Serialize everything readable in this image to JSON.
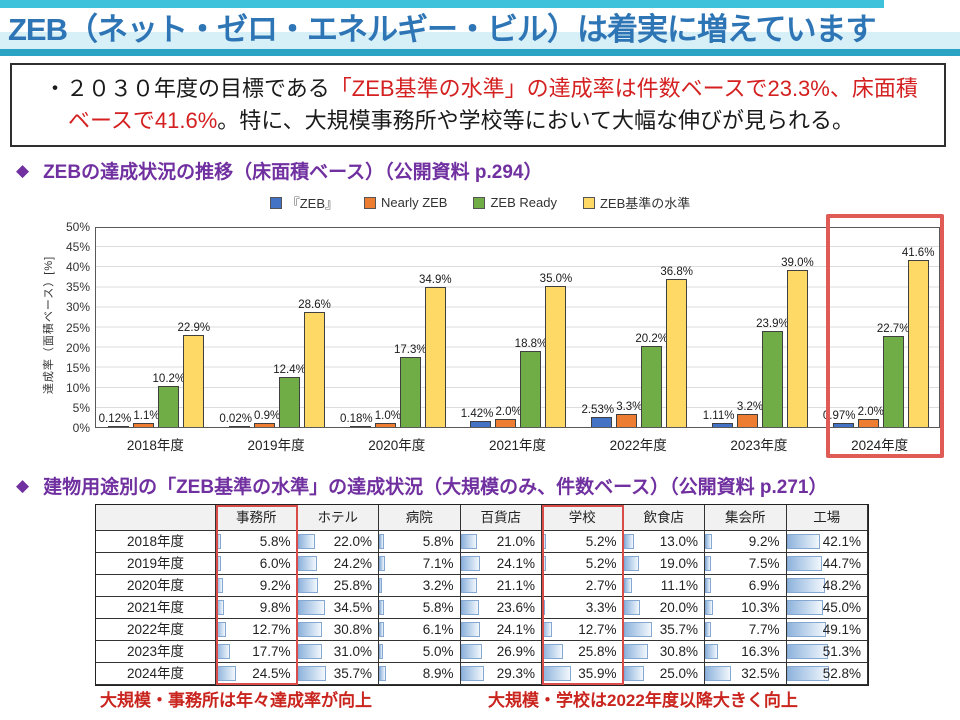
{
  "header": {
    "title": "ZEB（ネット・ゼロ・エネルギー・ビル）は着実に増えています"
  },
  "summary": {
    "segments": [
      {
        "text": "・２０３０年度の目標である",
        "color": "dark"
      },
      {
        "text": "「ZEB基準の水準」の達成率は件数ベースで23.3%、床面積ベースで41.6%",
        "color": "red"
      },
      {
        "text": "。特に、大規模事務所や学校等において大幅な伸びが見られる。",
        "color": "dark"
      }
    ]
  },
  "section1": {
    "marker": "◆",
    "title": "ZEBの達成状況の推移（床面積ベース）（公開資料 p.294）"
  },
  "chart_data": {
    "type": "bar",
    "title": "",
    "categories": [
      "2018年度",
      "2019年度",
      "2020年度",
      "2021年度",
      "2022年度",
      "2023年度",
      "2024年度"
    ],
    "series": [
      {
        "name": "『ZEB』",
        "color": "#4472C4",
        "values": [
          0.12,
          0.02,
          0.18,
          1.42,
          2.53,
          1.11,
          0.97
        ],
        "labels": [
          "0.12%",
          "0.02%",
          "0.18%",
          "1.42%",
          "2.53%",
          "1.11%",
          "0.97%"
        ]
      },
      {
        "name": "Nearly ZEB",
        "color": "#ED7D31",
        "values": [
          1.1,
          0.9,
          1.0,
          2.0,
          3.3,
          3.2,
          2.0
        ],
        "labels": [
          "1.1%",
          "0.9%",
          "1.0%",
          "2.0%",
          "3.3%",
          "3.2%",
          "2.0%"
        ]
      },
      {
        "name": "ZEB Ready",
        "color": "#70AD47",
        "values": [
          10.2,
          12.4,
          17.3,
          18.8,
          20.2,
          23.9,
          22.7
        ],
        "labels": [
          "10.2%",
          "12.4%",
          "17.3%",
          "18.8%",
          "20.2%",
          "23.9%",
          "22.7%"
        ]
      },
      {
        "name": "ZEB基準の水準",
        "color": "#FFD966",
        "values": [
          22.9,
          28.6,
          34.9,
          35.0,
          36.8,
          39.0,
          41.6
        ],
        "labels": [
          "22.9%",
          "28.6%",
          "34.9%",
          "35.0%",
          "36.8%",
          "39.0%",
          "41.6%"
        ]
      }
    ],
    "xlabel": "",
    "ylabel": "達成率（面積ベース）[%]",
    "ylim": [
      0,
      50
    ],
    "ytick_step": 5,
    "ytick_suffix": "%",
    "grid": true,
    "legend_position": "top",
    "highlighted_category": "2024年度"
  },
  "section2": {
    "marker": "◆",
    "title": "建物用途別の「ZEB基準の水準」の達成状況（大規模のみ、件数ベース）（公開資料 p.271）"
  },
  "table": {
    "columns": [
      "",
      "事務所",
      "ホテル",
      "病院",
      "百貨店",
      "学校",
      "飲食店",
      "集会所",
      "工場"
    ],
    "highlighted_columns": [
      "事務所",
      "学校"
    ],
    "value_suffix": "%",
    "rows": [
      {
        "year": "2018年度",
        "values": [
          5.8,
          22.0,
          5.8,
          21.0,
          5.2,
          13.0,
          9.2,
          42.1
        ]
      },
      {
        "year": "2019年度",
        "values": [
          6.0,
          24.2,
          7.1,
          24.1,
          5.2,
          19.0,
          7.5,
          44.7
        ]
      },
      {
        "year": "2020年度",
        "values": [
          9.2,
          25.8,
          3.2,
          21.1,
          2.7,
          11.1,
          6.9,
          48.2
        ]
      },
      {
        "year": "2021年度",
        "values": [
          9.8,
          34.5,
          5.8,
          23.6,
          3.3,
          20.0,
          10.3,
          45.0
        ]
      },
      {
        "year": "2022年度",
        "values": [
          12.7,
          30.8,
          6.1,
          24.1,
          12.7,
          35.7,
          7.7,
          49.1
        ]
      },
      {
        "year": "2023年度",
        "values": [
          17.7,
          31.0,
          5.0,
          26.9,
          25.8,
          30.8,
          16.3,
          51.3
        ]
      },
      {
        "year": "2024年度",
        "values": [
          24.5,
          35.7,
          8.9,
          29.3,
          35.9,
          25.0,
          32.5,
          52.8
        ]
      }
    ]
  },
  "annotations": {
    "left": "大規模・事務所は年々達成率が向上",
    "right": "大規模・学校は2022年度以降大きく向上"
  },
  "colors": {
    "title_blue": "#2E75B6",
    "header_purple": "#7030A0",
    "accent_red": "#D42020",
    "highlight_box_red": "#E05B55",
    "table_highlight_red": "#D94C49",
    "annotation_red": "#C9241E",
    "top_strip_cyan": "#3EC1DB",
    "band_light_cyan": "#D7F0F7",
    "rule_teal": "#2BA3C4",
    "databar_blue": "#8FB3DC"
  }
}
